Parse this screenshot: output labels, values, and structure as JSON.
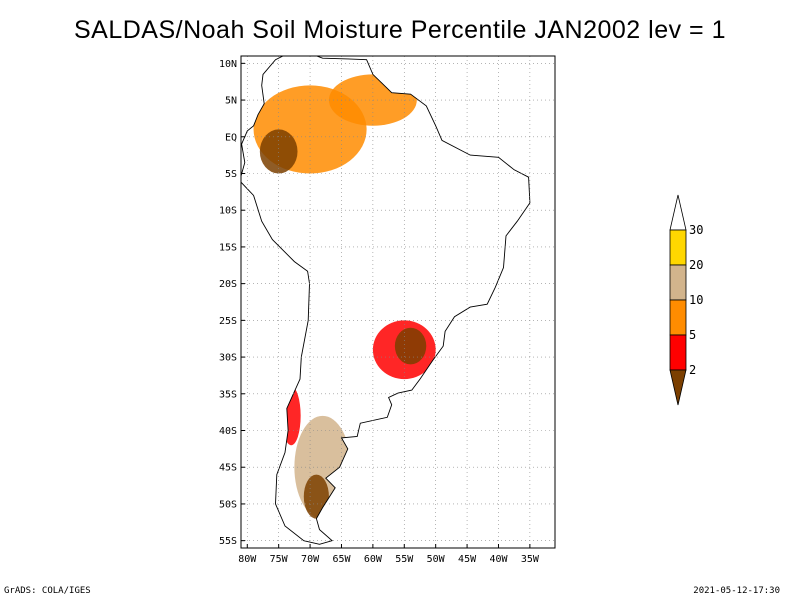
{
  "title": "SALDAS/Noah Soil Moisture Percentile JAN2002 lev = 1",
  "footer": {
    "left": "GrADS: COLA/IGES",
    "right": "2021-05-12-17:30"
  },
  "map": {
    "lon_range": [
      -81,
      -31
    ],
    "lat_range": [
      -56,
      11
    ],
    "x_ticks": [
      {
        "lon": -80,
        "label": "80W"
      },
      {
        "lon": -75,
        "label": "75W"
      },
      {
        "lon": -70,
        "label": "70W"
      },
      {
        "lon": -65,
        "label": "65W"
      },
      {
        "lon": -60,
        "label": "60W"
      },
      {
        "lon": -55,
        "label": "55W"
      },
      {
        "lon": -50,
        "label": "50W"
      },
      {
        "lon": -45,
        "label": "45W"
      },
      {
        "lon": -40,
        "label": "40W"
      },
      {
        "lon": -35,
        "label": "35W"
      }
    ],
    "y_ticks": [
      {
        "lat": 10,
        "label": "10N"
      },
      {
        "lat": 5,
        "label": "5N"
      },
      {
        "lat": 0,
        "label": "EQ"
      },
      {
        "lat": -5,
        "label": "5S"
      },
      {
        "lat": -10,
        "label": "10S"
      },
      {
        "lat": -15,
        "label": "15S"
      },
      {
        "lat": -20,
        "label": "20S"
      },
      {
        "lat": -25,
        "label": "25S"
      },
      {
        "lat": -30,
        "label": "30S"
      },
      {
        "lat": -35,
        "label": "35S"
      },
      {
        "lat": -40,
        "label": "40S"
      },
      {
        "lat": -45,
        "label": "45S"
      },
      {
        "lat": -50,
        "label": "50S"
      },
      {
        "lat": -55,
        "label": "55S"
      }
    ],
    "grid": "dotted",
    "dry_regions": [
      {
        "name": "northwest-amazon-colombia",
        "lon": -70,
        "lat": 1,
        "rx": 9,
        "ry": 6,
        "level": 10
      },
      {
        "name": "venezuela-guyana",
        "lon": -60,
        "lat": 5,
        "rx": 7,
        "ry": 3.5,
        "level": 10
      },
      {
        "name": "ecuador-peru-core",
        "lon": -75,
        "lat": -2,
        "rx": 3,
        "ry": 3,
        "level": 2
      },
      {
        "name": "southern-brazil-uruguay",
        "lon": -55,
        "lat": -29,
        "rx": 5,
        "ry": 4,
        "level": 5
      },
      {
        "name": "southern-brazil-core",
        "lon": -54,
        "lat": -28.5,
        "rx": 2.5,
        "ry": 2.5,
        "level": 2
      },
      {
        "name": "central-chile",
        "lon": -73,
        "lat": -38,
        "rx": 1.5,
        "ry": 4,
        "level": 5
      },
      {
        "name": "patagonia",
        "lon": -68,
        "lat": -45,
        "rx": 4.5,
        "ry": 7,
        "level": 20
      },
      {
        "name": "southern-patagonia-core",
        "lon": -69,
        "lat": -49,
        "rx": 2,
        "ry": 3,
        "level": 2
      }
    ]
  },
  "colorbar": {
    "items": [
      {
        "color": "#7b3f00",
        "label": "2"
      },
      {
        "color": "#ff0000",
        "label": "5"
      },
      {
        "color": "#ff8c00",
        "label": "10"
      },
      {
        "color": "#d2b48c",
        "label": "20"
      },
      {
        "color": "#ffd700",
        "label": "30"
      }
    ],
    "over_color": "#ffffff",
    "under_color": "#7b3f00"
  }
}
